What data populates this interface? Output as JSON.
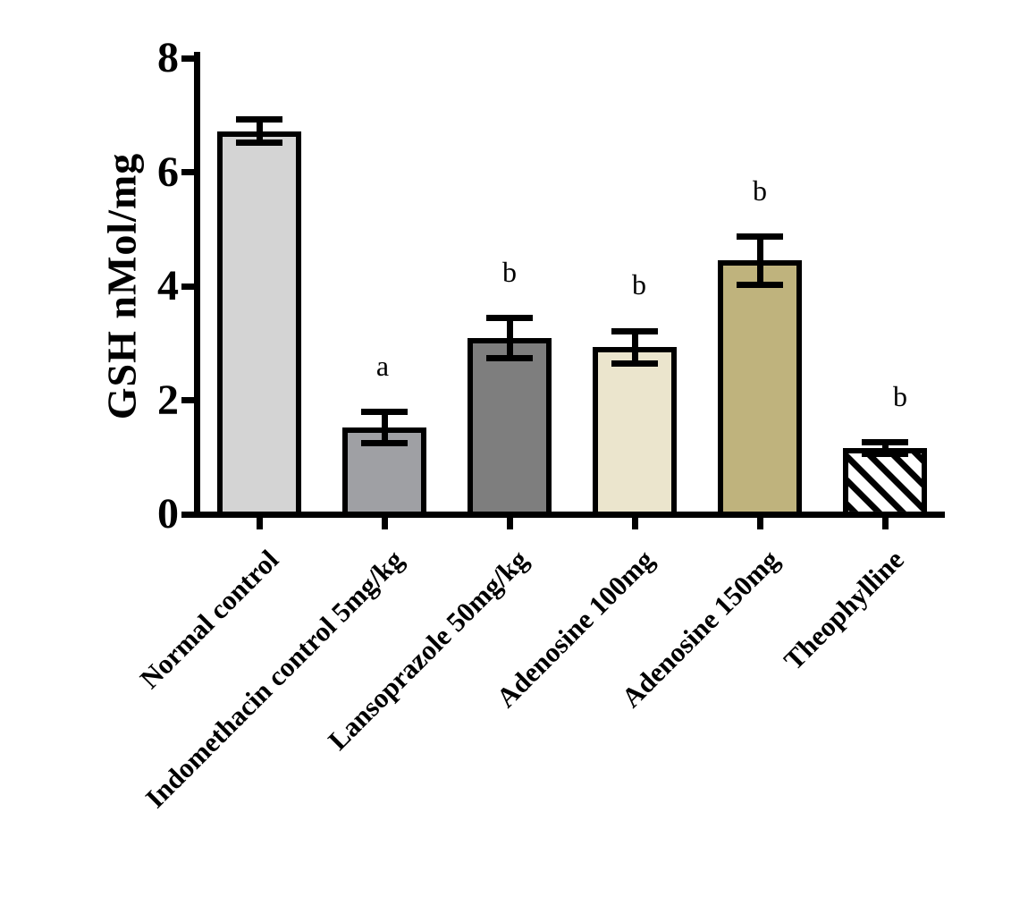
{
  "chart_data": {
    "type": "bar",
    "title": "",
    "ylabel": "GSH nMol/mg",
    "xlabel": "",
    "ylim": [
      0,
      8
    ],
    "yticks": [
      0,
      2,
      4,
      6,
      8
    ],
    "grid": false,
    "legend": "none",
    "categories": [
      "Normal control",
      "Indomethacin control 5mg/kg",
      "Lansoprazole 50mg/kg",
      "Adenosine 100mg",
      "Adenosine 150mg",
      "Theophylline"
    ],
    "values": [
      6.72,
      1.52,
      3.09,
      2.93,
      4.45,
      1.16
    ],
    "errors": [
      0.21,
      0.27,
      0.35,
      0.28,
      0.42,
      0.1
    ],
    "significance_letters": [
      "",
      "a",
      "b",
      "b",
      "b",
      "b"
    ],
    "letter_dx": [
      0,
      -2,
      0,
      5,
      0,
      17
    ],
    "bar_styles": [
      {
        "fill": "#D4D4D4",
        "hatch": "none"
      },
      {
        "fill": "#9FA0A4",
        "hatch": "none"
      },
      {
        "fill": "#7E7E7E",
        "hatch": "none"
      },
      {
        "fill": "#EBE5CD",
        "hatch": "none"
      },
      {
        "fill": "#BFB37D",
        "hatch": "none"
      },
      {
        "fill": "#FFFFFF",
        "hatch": "diagonal-down"
      }
    ],
    "edge_color": "#000000",
    "hatch_color": "#000000",
    "background_color": "#FFFFFF"
  }
}
